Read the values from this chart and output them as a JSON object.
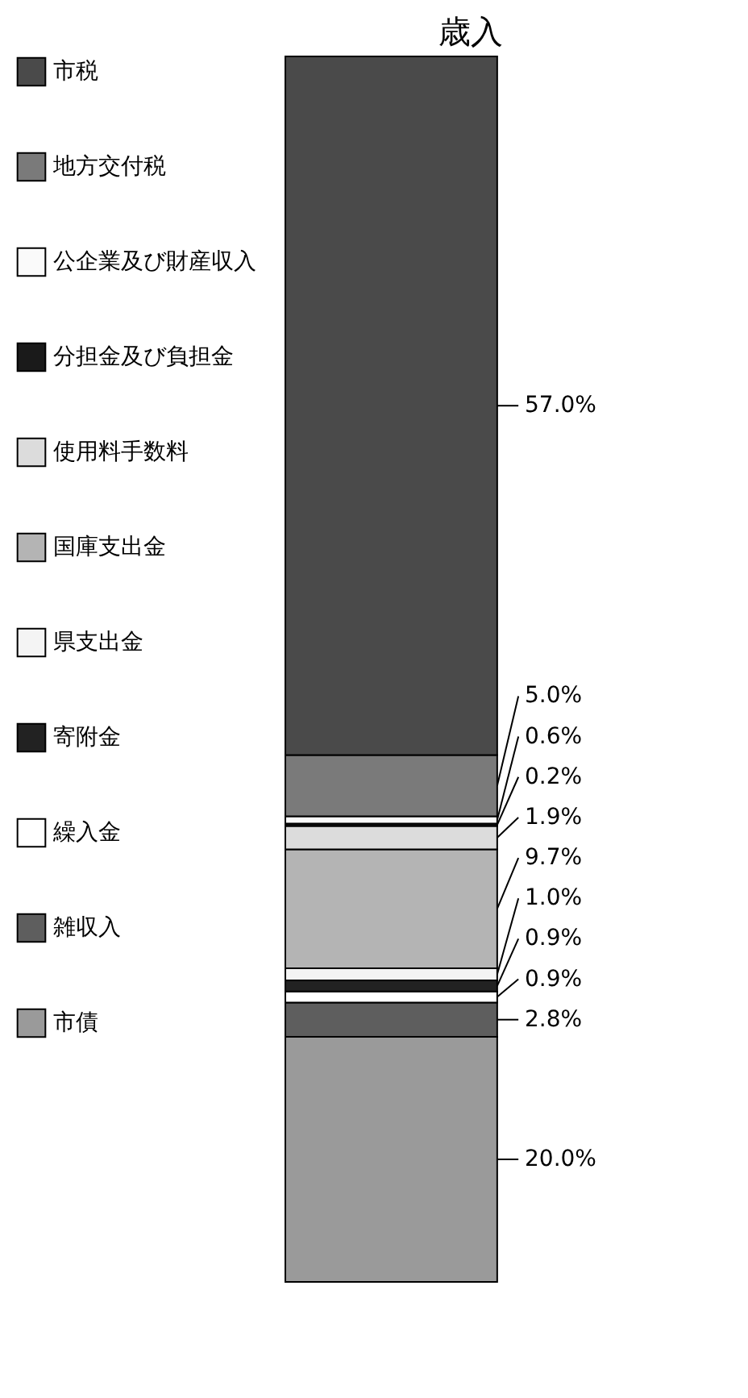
{
  "chart_data": {
    "type": "bar",
    "title": "歳入",
    "stacked": true,
    "legend": "left",
    "tick_labels": false,
    "categories": [
      null
    ],
    "series": [
      {
        "name": "市債",
        "color": "#9a9a9a",
        "values": [
          20.0
        ],
        "value_labels": [
          "20.0%"
        ]
      },
      {
        "name": "雑収入",
        "color": "#5e5e5e",
        "values": [
          2.8
        ],
        "value_labels": [
          "2.8%"
        ]
      },
      {
        "name": "繰入金",
        "color": "#ffffff",
        "values": [
          0.9
        ],
        "value_labels": [
          "0.9%"
        ]
      },
      {
        "name": "寄附金",
        "color": "#222222",
        "values": [
          0.9
        ],
        "value_labels": [
          "0.9%"
        ]
      },
      {
        "name": "県支出金",
        "color": "#f4f4f4",
        "values": [
          1.0
        ],
        "value_labels": [
          "1.0%"
        ]
      },
      {
        "name": "国庫支出金",
        "color": "#b4b4b4",
        "values": [
          9.7
        ],
        "value_labels": [
          "9.7%"
        ]
      },
      {
        "name": "使用料手数料",
        "color": "#dcdcdc",
        "values": [
          1.9
        ],
        "value_labels": [
          "1.9%"
        ]
      },
      {
        "name": "分担金及び負担金",
        "color": "#1a1a1a",
        "values": [
          0.2
        ],
        "value_labels": [
          "0.2%"
        ]
      },
      {
        "name": "公企業及び財産収入",
        "color": "#fafafa",
        "values": [
          0.6
        ],
        "value_labels": [
          "0.6%"
        ]
      },
      {
        "name": "地方交付税",
        "color": "#7a7a7a",
        "values": [
          5.0
        ],
        "value_labels": [
          "5.0%"
        ]
      },
      {
        "name": "市税",
        "color": "#4a4a4a",
        "values": [
          57.0
        ],
        "value_labels": [
          "57.0%"
        ]
      }
    ]
  }
}
